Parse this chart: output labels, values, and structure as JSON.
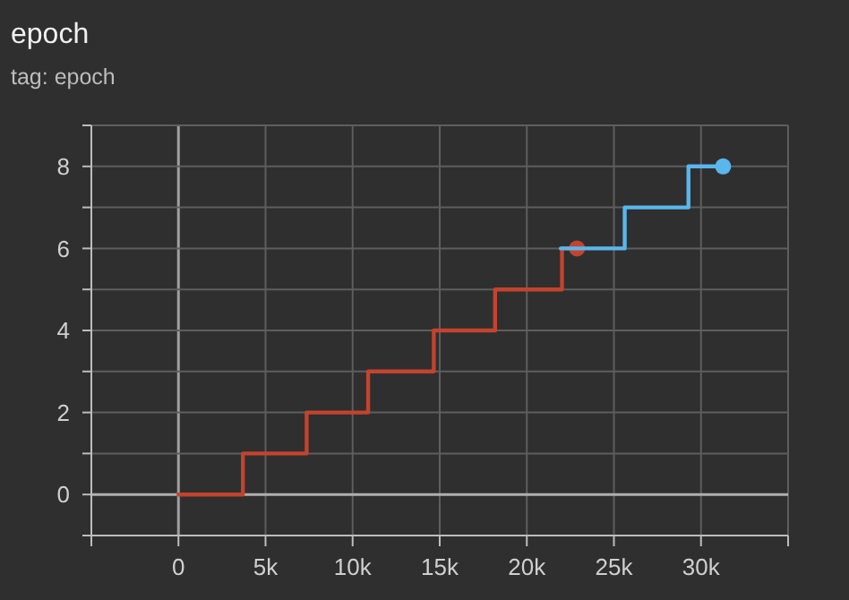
{
  "chart_data": {
    "type": "step",
    "title": "epoch",
    "subtitle": "tag: epoch",
    "xlim": [
      -5000,
      35000
    ],
    "xticks": [
      {
        "value": -5000,
        "label": null
      },
      {
        "value": 0,
        "label": "0"
      },
      {
        "value": 5000,
        "label": "5k"
      },
      {
        "value": 10000,
        "label": "10k"
      },
      {
        "value": 15000,
        "label": "15k"
      },
      {
        "value": 20000,
        "label": "20k"
      },
      {
        "value": 25000,
        "label": "25k"
      },
      {
        "value": 30000,
        "label": "30k"
      },
      {
        "value": 35000,
        "label": null
      }
    ],
    "ylim": [
      -1,
      9
    ],
    "yticks": [
      {
        "value": -1,
        "label": null
      },
      0,
      {
        "value": 1,
        "label": null
      },
      2,
      {
        "value": 3,
        "label": null
      },
      4,
      {
        "value": 5,
        "label": null
      },
      6,
      {
        "value": 7,
        "label": null
      },
      8,
      {
        "value": 9,
        "label": null
      }
    ],
    "grid": true,
    "series": [
      {
        "color": "#c4432e",
        "x": [
          0,
          3700,
          7360,
          10890,
          14660,
          18180,
          22020,
          22880
        ],
        "values": [
          0,
          1,
          2,
          3,
          4,
          5,
          6,
          6
        ]
      },
      {
        "color": "#5ab6ec",
        "x": [
          21950,
          25620,
          29280,
          31270
        ],
        "values": [
          6,
          7,
          8,
          8
        ]
      }
    ]
  }
}
